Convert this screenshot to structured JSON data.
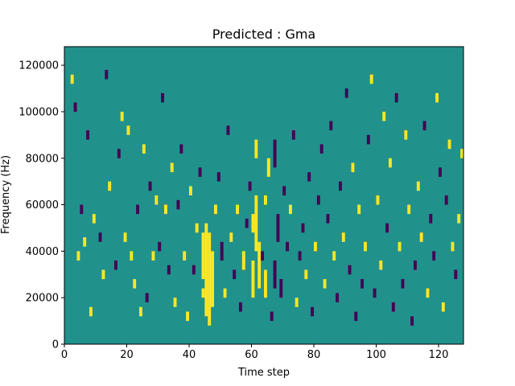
{
  "chart_data": {
    "type": "heatmap",
    "title": "Predicted : Gma",
    "xlabel": "Time step",
    "ylabel": "Frequency (Hz)",
    "xlim": [
      0,
      128
    ],
    "ylim": [
      0,
      128000
    ],
    "xticks": [
      0,
      20,
      40,
      60,
      80,
      100,
      120
    ],
    "yticks": [
      0,
      20000,
      40000,
      60000,
      80000,
      100000,
      120000
    ],
    "xtick_labels": [
      "0",
      "20",
      "40",
      "60",
      "80",
      "100",
      "120"
    ],
    "ytick_labels": [
      "0",
      "20000",
      "40000",
      "60000",
      "80000",
      "100000",
      "120000"
    ],
    "grid": false,
    "legend": "none",
    "colors": {
      "low": "#440154",
      "mid": "#21918c",
      "high": "#fde725"
    },
    "levels": {
      "low": -1,
      "background": 0,
      "high": 1
    },
    "background_level": 0,
    "cells": [
      {
        "x": 2,
        "y0": 112000,
        "y1": 116000,
        "v": 1
      },
      {
        "x": 3,
        "y0": 100000,
        "y1": 104000,
        "v": -1
      },
      {
        "x": 4,
        "y0": 36000,
        "y1": 40000,
        "v": 1
      },
      {
        "x": 5,
        "y0": 56000,
        "y1": 60000,
        "v": -1
      },
      {
        "x": 6,
        "y0": 42000,
        "y1": 46000,
        "v": 1
      },
      {
        "x": 7,
        "y0": 88000,
        "y1": 92000,
        "v": -1
      },
      {
        "x": 8,
        "y0": 12000,
        "y1": 16000,
        "v": 1
      },
      {
        "x": 9,
        "y0": 52000,
        "y1": 56000,
        "v": 1
      },
      {
        "x": 11,
        "y0": 44000,
        "y1": 48000,
        "v": -1
      },
      {
        "x": 12,
        "y0": 28000,
        "y1": 32000,
        "v": 1
      },
      {
        "x": 13,
        "y0": 114000,
        "y1": 118000,
        "v": -1
      },
      {
        "x": 14,
        "y0": 66000,
        "y1": 70000,
        "v": 1
      },
      {
        "x": 16,
        "y0": 32000,
        "y1": 36000,
        "v": -1
      },
      {
        "x": 17,
        "y0": 80000,
        "y1": 84000,
        "v": -1
      },
      {
        "x": 18,
        "y0": 96000,
        "y1": 100000,
        "v": 1
      },
      {
        "x": 19,
        "y0": 44000,
        "y1": 48000,
        "v": 1
      },
      {
        "x": 20,
        "y0": 90000,
        "y1": 94000,
        "v": 1
      },
      {
        "x": 21,
        "y0": 36000,
        "y1": 40000,
        "v": 1
      },
      {
        "x": 22,
        "y0": 24000,
        "y1": 28000,
        "v": 1
      },
      {
        "x": 23,
        "y0": 56000,
        "y1": 60000,
        "v": -1
      },
      {
        "x": 24,
        "y0": 12000,
        "y1": 16000,
        "v": 1
      },
      {
        "x": 25,
        "y0": 82000,
        "y1": 86000,
        "v": 1
      },
      {
        "x": 26,
        "y0": 18000,
        "y1": 22000,
        "v": -1
      },
      {
        "x": 27,
        "y0": 66000,
        "y1": 70000,
        "v": -1
      },
      {
        "x": 28,
        "y0": 36000,
        "y1": 40000,
        "v": 1
      },
      {
        "x": 29,
        "y0": 60000,
        "y1": 64000,
        "v": 1
      },
      {
        "x": 30,
        "y0": 40000,
        "y1": 44000,
        "v": -1
      },
      {
        "x": 31,
        "y0": 104000,
        "y1": 108000,
        "v": -1
      },
      {
        "x": 32,
        "y0": 56000,
        "y1": 60000,
        "v": 1
      },
      {
        "x": 33,
        "y0": 30000,
        "y1": 34000,
        "v": -1
      },
      {
        "x": 34,
        "y0": 74000,
        "y1": 78000,
        "v": 1
      },
      {
        "x": 35,
        "y0": 16000,
        "y1": 20000,
        "v": 1
      },
      {
        "x": 36,
        "y0": 58000,
        "y1": 62000,
        "v": -1
      },
      {
        "x": 37,
        "y0": 82000,
        "y1": 86000,
        "v": -1
      },
      {
        "x": 38,
        "y0": 36000,
        "y1": 40000,
        "v": 1
      },
      {
        "x": 39,
        "y0": 10000,
        "y1": 14000,
        "v": 1
      },
      {
        "x": 40,
        "y0": 64000,
        "y1": 68000,
        "v": 1
      },
      {
        "x": 41,
        "y0": 30000,
        "y1": 34000,
        "v": -1
      },
      {
        "x": 42,
        "y0": 48000,
        "y1": 52000,
        "v": 1
      },
      {
        "x": 43,
        "y0": 72000,
        "y1": 76000,
        "v": -1
      },
      {
        "x": 44,
        "y0": 20000,
        "y1": 24000,
        "v": 1
      },
      {
        "x": 44,
        "y0": 28000,
        "y1": 48000,
        "v": 1
      },
      {
        "x": 45,
        "y0": 12000,
        "y1": 52000,
        "v": 1
      },
      {
        "x": 46,
        "y0": 8000,
        "y1": 48000,
        "v": 1
      },
      {
        "x": 47,
        "y0": 16000,
        "y1": 40000,
        "v": 1
      },
      {
        "x": 48,
        "y0": 56000,
        "y1": 60000,
        "v": 1
      },
      {
        "x": 49,
        "y0": 70000,
        "y1": 74000,
        "v": -1
      },
      {
        "x": 50,
        "y0": 36000,
        "y1": 44000,
        "v": -1
      },
      {
        "x": 51,
        "y0": 20000,
        "y1": 24000,
        "v": 1
      },
      {
        "x": 52,
        "y0": 90000,
        "y1": 94000,
        "v": -1
      },
      {
        "x": 53,
        "y0": 44000,
        "y1": 48000,
        "v": 1
      },
      {
        "x": 54,
        "y0": 28000,
        "y1": 32000,
        "v": -1
      },
      {
        "x": 55,
        "y0": 56000,
        "y1": 60000,
        "v": 1
      },
      {
        "x": 56,
        "y0": 14000,
        "y1": 18000,
        "v": -1
      },
      {
        "x": 57,
        "y0": 32000,
        "y1": 40000,
        "v": 1
      },
      {
        "x": 58,
        "y0": 50000,
        "y1": 54000,
        "v": -1
      },
      {
        "x": 59,
        "y0": 66000,
        "y1": 70000,
        "v": -1
      },
      {
        "x": 60,
        "y0": 20000,
        "y1": 36000,
        "v": 1
      },
      {
        "x": 60,
        "y0": 48000,
        "y1": 56000,
        "v": 1
      },
      {
        "x": 61,
        "y0": 40000,
        "y1": 64000,
        "v": 1
      },
      {
        "x": 61,
        "y0": 80000,
        "y1": 88000,
        "v": 1
      },
      {
        "x": 62,
        "y0": 24000,
        "y1": 44000,
        "v": 1
      },
      {
        "x": 63,
        "y0": 36000,
        "y1": 40000,
        "v": -1
      },
      {
        "x": 64,
        "y0": 20000,
        "y1": 32000,
        "v": 1
      },
      {
        "x": 64,
        "y0": 60000,
        "y1": 64000,
        "v": 1
      },
      {
        "x": 65,
        "y0": 72000,
        "y1": 80000,
        "v": 1
      },
      {
        "x": 66,
        "y0": 10000,
        "y1": 14000,
        "v": -1
      },
      {
        "x": 67,
        "y0": 24000,
        "y1": 36000,
        "v": -1
      },
      {
        "x": 67,
        "y0": 76000,
        "y1": 88000,
        "v": -1
      },
      {
        "x": 68,
        "y0": 44000,
        "y1": 56000,
        "v": -1
      },
      {
        "x": 69,
        "y0": 20000,
        "y1": 28000,
        "v": -1
      },
      {
        "x": 70,
        "y0": 64000,
        "y1": 68000,
        "v": -1
      },
      {
        "x": 71,
        "y0": 40000,
        "y1": 44000,
        "v": -1
      },
      {
        "x": 72,
        "y0": 56000,
        "y1": 60000,
        "v": 1
      },
      {
        "x": 73,
        "y0": 88000,
        "y1": 92000,
        "v": -1
      },
      {
        "x": 74,
        "y0": 16000,
        "y1": 20000,
        "v": 1
      },
      {
        "x": 75,
        "y0": 36000,
        "y1": 40000,
        "v": -1
      },
      {
        "x": 76,
        "y0": 48000,
        "y1": 52000,
        "v": -1
      },
      {
        "x": 77,
        "y0": 28000,
        "y1": 32000,
        "v": 1
      },
      {
        "x": 78,
        "y0": 70000,
        "y1": 74000,
        "v": -1
      },
      {
        "x": 79,
        "y0": 12000,
        "y1": 16000,
        "v": -1
      },
      {
        "x": 80,
        "y0": 40000,
        "y1": 44000,
        "v": 1
      },
      {
        "x": 81,
        "y0": 60000,
        "y1": 64000,
        "v": -1
      },
      {
        "x": 82,
        "y0": 82000,
        "y1": 86000,
        "v": -1
      },
      {
        "x": 83,
        "y0": 24000,
        "y1": 28000,
        "v": 1
      },
      {
        "x": 84,
        "y0": 52000,
        "y1": 56000,
        "v": -1
      },
      {
        "x": 85,
        "y0": 92000,
        "y1": 96000,
        "v": -1
      },
      {
        "x": 86,
        "y0": 36000,
        "y1": 40000,
        "v": 1
      },
      {
        "x": 87,
        "y0": 18000,
        "y1": 22000,
        "v": -1
      },
      {
        "x": 88,
        "y0": 66000,
        "y1": 70000,
        "v": -1
      },
      {
        "x": 89,
        "y0": 44000,
        "y1": 48000,
        "v": 1
      },
      {
        "x": 90,
        "y0": 106000,
        "y1": 110000,
        "v": -1
      },
      {
        "x": 91,
        "y0": 30000,
        "y1": 34000,
        "v": -1
      },
      {
        "x": 92,
        "y0": 74000,
        "y1": 78000,
        "v": 1
      },
      {
        "x": 93,
        "y0": 10000,
        "y1": 14000,
        "v": -1
      },
      {
        "x": 94,
        "y0": 56000,
        "y1": 60000,
        "v": 1
      },
      {
        "x": 95,
        "y0": 24000,
        "y1": 28000,
        "v": -1
      },
      {
        "x": 96,
        "y0": 40000,
        "y1": 44000,
        "v": 1
      },
      {
        "x": 97,
        "y0": 86000,
        "y1": 90000,
        "v": -1
      },
      {
        "x": 98,
        "y0": 112000,
        "y1": 116000,
        "v": 1
      },
      {
        "x": 99,
        "y0": 20000,
        "y1": 24000,
        "v": -1
      },
      {
        "x": 100,
        "y0": 60000,
        "y1": 64000,
        "v": 1
      },
      {
        "x": 101,
        "y0": 32000,
        "y1": 36000,
        "v": 1
      },
      {
        "x": 102,
        "y0": 96000,
        "y1": 100000,
        "v": 1
      },
      {
        "x": 103,
        "y0": 48000,
        "y1": 52000,
        "v": -1
      },
      {
        "x": 104,
        "y0": 76000,
        "y1": 80000,
        "v": 1
      },
      {
        "x": 105,
        "y0": 14000,
        "y1": 18000,
        "v": -1
      },
      {
        "x": 106,
        "y0": 104000,
        "y1": 108000,
        "v": -1
      },
      {
        "x": 107,
        "y0": 40000,
        "y1": 44000,
        "v": 1
      },
      {
        "x": 108,
        "y0": 24000,
        "y1": 28000,
        "v": -1
      },
      {
        "x": 109,
        "y0": 88000,
        "y1": 92000,
        "v": 1
      },
      {
        "x": 110,
        "y0": 56000,
        "y1": 60000,
        "v": 1
      },
      {
        "x": 111,
        "y0": 8000,
        "y1": 12000,
        "v": -1
      },
      {
        "x": 112,
        "y0": 32000,
        "y1": 36000,
        "v": -1
      },
      {
        "x": 113,
        "y0": 66000,
        "y1": 70000,
        "v": 1
      },
      {
        "x": 114,
        "y0": 44000,
        "y1": 48000,
        "v": 1
      },
      {
        "x": 115,
        "y0": 92000,
        "y1": 96000,
        "v": -1
      },
      {
        "x": 116,
        "y0": 20000,
        "y1": 24000,
        "v": 1
      },
      {
        "x": 117,
        "y0": 52000,
        "y1": 56000,
        "v": -1
      },
      {
        "x": 118,
        "y0": 36000,
        "y1": 40000,
        "v": -1
      },
      {
        "x": 119,
        "y0": 104000,
        "y1": 108000,
        "v": 1
      },
      {
        "x": 120,
        "y0": 72000,
        "y1": 76000,
        "v": -1
      },
      {
        "x": 121,
        "y0": 14000,
        "y1": 18000,
        "v": 1
      },
      {
        "x": 122,
        "y0": 60000,
        "y1": 64000,
        "v": -1
      },
      {
        "x": 123,
        "y0": 84000,
        "y1": 88000,
        "v": 1
      },
      {
        "x": 124,
        "y0": 40000,
        "y1": 44000,
        "v": 1
      },
      {
        "x": 125,
        "y0": 28000,
        "y1": 32000,
        "v": -1
      },
      {
        "x": 126,
        "y0": 52000,
        "y1": 56000,
        "v": 1
      },
      {
        "x": 127,
        "y0": 80000,
        "y1": 84000,
        "v": 1
      }
    ]
  }
}
